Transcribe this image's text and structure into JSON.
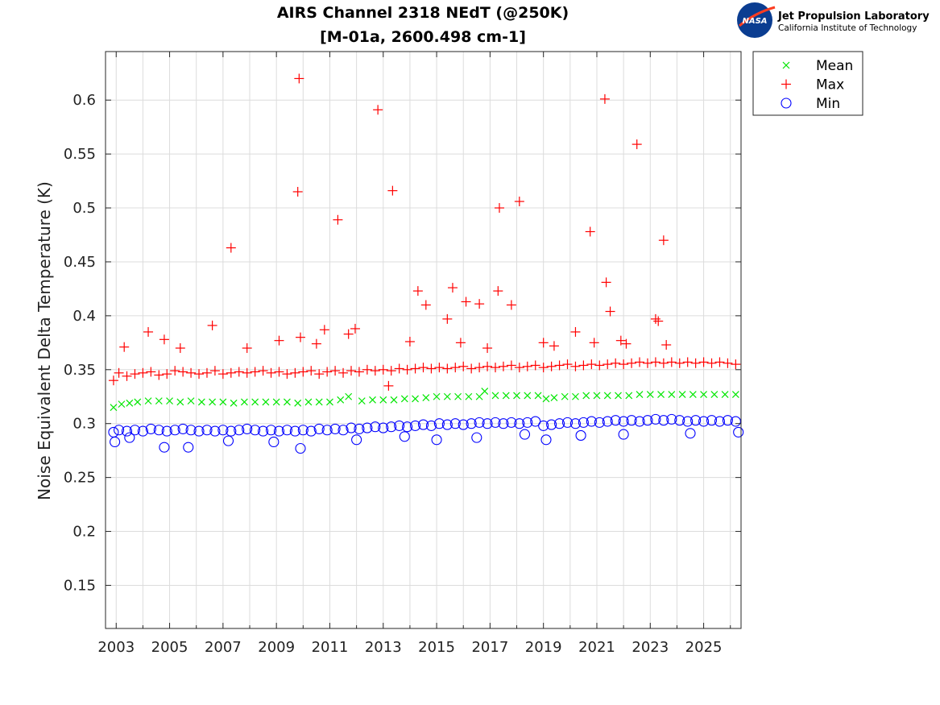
{
  "chart_data": {
    "type": "scatter",
    "title_line1": "AIRS Channel 2318 NEdT (@250K)",
    "title_line2": "[M-01a, 2600.498 cm-1]",
    "xlabel": "",
    "ylabel": "Noise Equivalent Delta Temperature (K)",
    "xlim": [
      2002.6,
      2026.4
    ],
    "ylim": [
      0.11,
      0.645
    ],
    "x_ticks": [
      2003,
      2005,
      2007,
      2009,
      2011,
      2013,
      2015,
      2017,
      2019,
      2021,
      2023,
      2025
    ],
    "x_tick_labels": [
      "2003",
      "2005",
      "2007",
      "2009",
      "2011",
      "2013",
      "2015",
      "2017",
      "2019",
      "2021",
      "2023",
      "2025"
    ],
    "x_minor_ticks": [
      2004,
      2006,
      2008,
      2010,
      2012,
      2014,
      2016,
      2018,
      2020,
      2022,
      2024,
      2026
    ],
    "y_ticks": [
      0.15,
      0.2,
      0.25,
      0.3,
      0.35,
      0.4,
      0.45,
      0.5,
      0.55,
      0.6
    ],
    "y_tick_labels": [
      "0.15",
      "0.2",
      "0.25",
      "0.3",
      "0.35",
      "0.4",
      "0.45",
      "0.5",
      "0.55",
      "0.6"
    ],
    "grid": true,
    "legend_position": "outside-top-right",
    "series": [
      {
        "name": "Mean",
        "marker": "x",
        "color": "#00e600",
        "x": [
          2002.9,
          2003.2,
          2003.5,
          2003.8,
          2004.2,
          2004.6,
          2005.0,
          2005.4,
          2005.8,
          2006.2,
          2006.6,
          2007.0,
          2007.4,
          2007.8,
          2008.2,
          2008.6,
          2009.0,
          2009.4,
          2009.8,
          2010.2,
          2010.6,
          2011.0,
          2011.4,
          2011.7,
          2012.2,
          2012.6,
          2013.0,
          2013.4,
          2013.8,
          2014.2,
          2014.6,
          2015.0,
          2015.4,
          2015.8,
          2016.2,
          2016.6,
          2016.8,
          2017.2,
          2017.6,
          2018.0,
          2018.4,
          2018.8,
          2019.1,
          2019.4,
          2019.8,
          2020.2,
          2020.6,
          2021.0,
          2021.4,
          2021.8,
          2022.2,
          2022.6,
          2023.0,
          2023.4,
          2023.8,
          2024.2,
          2024.6,
          2025.0,
          2025.4,
          2025.8,
          2026.2
        ],
        "y": [
          0.315,
          0.318,
          0.319,
          0.32,
          0.321,
          0.321,
          0.321,
          0.32,
          0.321,
          0.32,
          0.32,
          0.32,
          0.319,
          0.32,
          0.32,
          0.32,
          0.32,
          0.32,
          0.319,
          0.32,
          0.32,
          0.32,
          0.322,
          0.325,
          0.321,
          0.322,
          0.322,
          0.322,
          0.323,
          0.323,
          0.324,
          0.325,
          0.325,
          0.325,
          0.325,
          0.325,
          0.33,
          0.326,
          0.326,
          0.326,
          0.326,
          0.326,
          0.323,
          0.324,
          0.325,
          0.325,
          0.326,
          0.326,
          0.326,
          0.326,
          0.326,
          0.327,
          0.327,
          0.327,
          0.327,
          0.327,
          0.327,
          0.327,
          0.327,
          0.327,
          0.327
        ]
      },
      {
        "name": "Max",
        "marker": "+",
        "color": "#ff0000",
        "x": [
          2002.9,
          2003.1,
          2003.4,
          2003.7,
          2004.0,
          2004.3,
          2004.6,
          2004.9,
          2005.2,
          2005.5,
          2005.8,
          2006.1,
          2006.4,
          2006.7,
          2007.0,
          2007.3,
          2007.6,
          2007.9,
          2008.2,
          2008.5,
          2008.8,
          2009.1,
          2009.4,
          2009.7,
          2010.0,
          2010.3,
          2010.6,
          2010.9,
          2011.2,
          2011.5,
          2011.8,
          2012.1,
          2012.4,
          2012.7,
          2013.0,
          2013.3,
          2013.6,
          2013.9,
          2014.2,
          2014.5,
          2014.8,
          2015.1,
          2015.4,
          2015.7,
          2016.0,
          2016.3,
          2016.6,
          2016.9,
          2017.2,
          2017.5,
          2017.8,
          2018.1,
          2018.4,
          2018.7,
          2019.0,
          2019.3,
          2019.6,
          2019.9,
          2020.2,
          2020.5,
          2020.8,
          2021.1,
          2021.4,
          2021.7,
          2022.0,
          2022.3,
          2022.6,
          2022.9,
          2023.2,
          2023.5,
          2023.8,
          2024.1,
          2024.4,
          2024.7,
          2025.0,
          2025.3,
          2025.6,
          2025.9,
          2026.2,
          2003.3,
          2004.2,
          2004.8,
          2005.4,
          2006.6,
          2007.3,
          2007.9,
          2009.1,
          2009.8,
          2009.85,
          2009.9,
          2010.5,
          2010.8,
          2011.3,
          2011.7,
          2011.95,
          2012.8,
          2013.2,
          2013.35,
          2014.0,
          2014.3,
          2014.6,
          2015.4,
          2015.6,
          2015.9,
          2016.1,
          2016.6,
          2016.9,
          2017.3,
          2017.35,
          2017.8,
          2018.1,
          2019.0,
          2019.4,
          2020.2,
          2020.75,
          2020.9,
          2021.3,
          2021.35,
          2021.5,
          2021.9,
          2022.1,
          2022.5,
          2023.2,
          2023.3,
          2023.5,
          2023.6
        ],
        "y": [
          0.34,
          0.347,
          0.344,
          0.346,
          0.347,
          0.348,
          0.345,
          0.346,
          0.349,
          0.348,
          0.347,
          0.346,
          0.347,
          0.349,
          0.346,
          0.347,
          0.348,
          0.347,
          0.348,
          0.349,
          0.347,
          0.348,
          0.346,
          0.347,
          0.348,
          0.349,
          0.346,
          0.348,
          0.349,
          0.347,
          0.349,
          0.348,
          0.35,
          0.349,
          0.35,
          0.349,
          0.351,
          0.35,
          0.351,
          0.352,
          0.351,
          0.352,
          0.351,
          0.352,
          0.353,
          0.351,
          0.352,
          0.353,
          0.352,
          0.353,
          0.354,
          0.352,
          0.353,
          0.354,
          0.352,
          0.353,
          0.354,
          0.355,
          0.353,
          0.354,
          0.355,
          0.354,
          0.355,
          0.356,
          0.355,
          0.356,
          0.357,
          0.356,
          0.357,
          0.356,
          0.357,
          0.356,
          0.357,
          0.356,
          0.357,
          0.356,
          0.357,
          0.356,
          0.355,
          0.371,
          0.385,
          0.378,
          0.37,
          0.391,
          0.463,
          0.37,
          0.377,
          0.515,
          0.62,
          0.38,
          0.374,
          0.387,
          0.489,
          0.383,
          0.388,
          0.591,
          0.335,
          0.516,
          0.376,
          0.423,
          0.41,
          0.397,
          0.426,
          0.375,
          0.413,
          0.411,
          0.37,
          0.423,
          0.5,
          0.41,
          0.506,
          0.375,
          0.372,
          0.385,
          0.478,
          0.375,
          0.601,
          0.431,
          0.404,
          0.377,
          0.374,
          0.559,
          0.397,
          0.395,
          0.47,
          0.373
        ]
      },
      {
        "name": "Min",
        "marker": "o",
        "color": "#0000ff",
        "x": [
          2002.9,
          2003.1,
          2003.4,
          2003.7,
          2004.0,
          2004.3,
          2004.6,
          2004.9,
          2005.2,
          2005.5,
          2005.8,
          2006.1,
          2006.4,
          2006.7,
          2007.0,
          2007.3,
          2007.6,
          2007.9,
          2008.2,
          2008.5,
          2008.8,
          2009.1,
          2009.4,
          2009.7,
          2010.0,
          2010.3,
          2010.6,
          2010.9,
          2011.2,
          2011.5,
          2011.8,
          2012.1,
          2012.4,
          2012.7,
          2013.0,
          2013.3,
          2013.6,
          2013.9,
          2014.2,
          2014.5,
          2014.8,
          2015.1,
          2015.4,
          2015.7,
          2016.0,
          2016.3,
          2016.6,
          2016.9,
          2017.2,
          2017.5,
          2017.8,
          2018.1,
          2018.4,
          2018.7,
          2019.0,
          2019.3,
          2019.6,
          2019.9,
          2020.2,
          2020.5,
          2020.8,
          2021.1,
          2021.4,
          2021.7,
          2022.0,
          2022.3,
          2022.6,
          2022.9,
          2023.2,
          2023.5,
          2023.8,
          2024.1,
          2024.4,
          2024.7,
          2025.0,
          2025.3,
          2025.6,
          2025.9,
          2026.2,
          2004.8,
          2005.7,
          2009.9,
          2015.0,
          2019.1,
          2002.95,
          2003.5,
          2007.2,
          2008.9,
          2012.0,
          2013.8,
          2016.5,
          2018.3,
          2020.4,
          2022.0,
          2024.5,
          2026.3
        ],
        "y": [
          0.292,
          0.294,
          0.293,
          0.294,
          0.293,
          0.295,
          0.294,
          0.293,
          0.294,
          0.295,
          0.294,
          0.293,
          0.294,
          0.293,
          0.294,
          0.293,
          0.294,
          0.295,
          0.294,
          0.293,
          0.294,
          0.293,
          0.294,
          0.293,
          0.294,
          0.293,
          0.295,
          0.294,
          0.295,
          0.294,
          0.296,
          0.295,
          0.296,
          0.297,
          0.296,
          0.297,
          0.298,
          0.297,
          0.298,
          0.299,
          0.298,
          0.3,
          0.299,
          0.3,
          0.299,
          0.3,
          0.301,
          0.3,
          0.301,
          0.3,
          0.301,
          0.3,
          0.301,
          0.302,
          0.298,
          0.299,
          0.3,
          0.301,
          0.3,
          0.301,
          0.302,
          0.301,
          0.302,
          0.303,
          0.302,
          0.303,
          0.302,
          0.303,
          0.304,
          0.303,
          0.304,
          0.303,
          0.302,
          0.303,
          0.302,
          0.303,
          0.302,
          0.303,
          0.302,
          0.278,
          0.278,
          0.277,
          0.285,
          0.285,
          0.283,
          0.287,
          0.284,
          0.283,
          0.285,
          0.288,
          0.287,
          0.29,
          0.289,
          0.29,
          0.291,
          0.292
        ]
      }
    ]
  },
  "logo": {
    "org_name": "Jet Propulsion Laboratory",
    "org_sub": "California Institute of Technology",
    "badge_text": "NASA"
  }
}
